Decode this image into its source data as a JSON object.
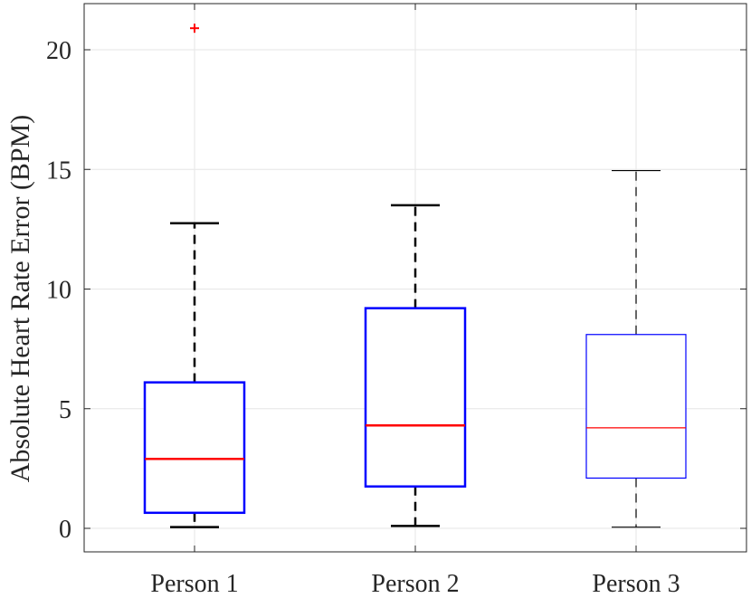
{
  "chart_data": {
    "type": "box",
    "title": "",
    "xlabel": "",
    "ylabel": "Absolute Heart Rate Error (BPM)",
    "ylim": [
      -1,
      22
    ],
    "yticks": [
      0,
      5,
      10,
      15,
      20
    ],
    "ytick_labels": [
      "0",
      "5",
      "10",
      "15",
      "20"
    ],
    "grid": true,
    "categories": [
      "Person 1",
      "Person 2",
      "Person 3"
    ],
    "boxes": [
      {
        "category": "Person 1",
        "whisker_low": 0.05,
        "q1": 0.65,
        "median": 2.9,
        "q3": 6.1,
        "whisker_high": 12.75,
        "outliers": [
          20.9
        ]
      },
      {
        "category": "Person 2",
        "whisker_low": 0.1,
        "q1": 1.75,
        "median": 4.3,
        "q3": 9.2,
        "whisker_high": 13.5,
        "outliers": []
      },
      {
        "category": "Person 3",
        "whisker_low": 0.05,
        "q1": 2.1,
        "median": 4.2,
        "q3": 8.1,
        "whisker_high": 14.95,
        "outliers": []
      }
    ],
    "colors": {
      "box": "#0000ff",
      "median": "#ff0000",
      "whisker": "#000000",
      "outlier": "#ff0000",
      "grid": "#e6e6e6",
      "axis": "#262626"
    }
  }
}
